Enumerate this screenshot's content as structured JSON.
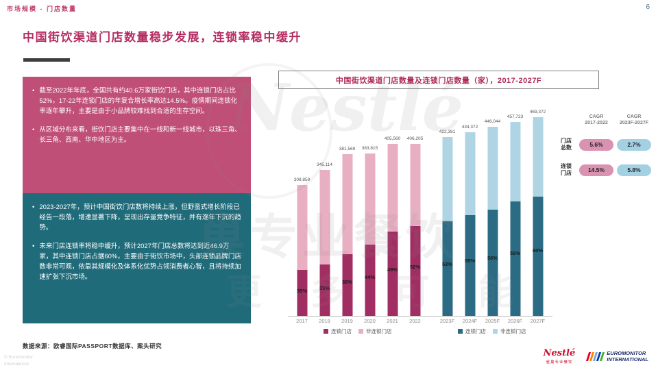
{
  "header": {
    "breadcrumb": "市场规模 - 门店数量",
    "page_number": "6"
  },
  "title": "中国街饮渠道门店数量稳步发展，连锁率稳中缓升",
  "insight_boxes": {
    "pink": {
      "bullets": [
        "截至2022年年底，全国共有约40.6万家街饮门店，其中连锁门店占比52%，17-22年连锁门店的年复合增长率高达14.5%。疫情期间连锁化率逐年攀升，主要是由于小品牌较难找到合适的生存空间。",
        "从区域分布来看，街饮门店主要集中在一线和新一线城市，以珠三角、长三角、西南、华中地区为主。"
      ]
    },
    "teal": {
      "bullets": [
        "2023-2027年，预计中国街饮门店数将持续上涨，但野蛮式增长阶段已经告一段落，增速显著下降，呈现出存量竞争特征，并有逐年下沉的趋势。",
        "未来门店连锁率将稳中缓升，预计2027年门店总数将达到近46.9万家，其中连锁门店占据60%，主要由于街饮市场中，头部连锁品牌门店数非常可观，依靠其规模化及体系化优势占领消费者心智，且将持续加速扩张下沉市场。"
      ]
    }
  },
  "chart_data": {
    "type": "bar",
    "stacked": true,
    "title": "中国街饮渠道门店数量及连锁门店数量（家），2017-2027F",
    "categories": [
      "2017",
      "2018",
      "2019",
      "2020",
      "2021",
      "2022",
      "2023F",
      "2024F",
      "2025F",
      "2026F",
      "2027F"
    ],
    "totals": [
      308859,
      345114,
      381569,
      383815,
      405560,
      406205,
      422381,
      434372,
      446044,
      457723,
      469372
    ],
    "total_labels": [
      "308,859",
      "345,114",
      "381,569",
      "383,815",
      "405,560",
      "406,205",
      "422,381",
      "434,372",
      "446,044",
      "457,723",
      "469,372"
    ],
    "chain_share_pct": [
      35,
      35,
      38,
      44,
      49,
      52,
      53,
      55,
      56,
      59,
      60
    ],
    "chain_pct_labels": [
      "35%",
      "35%",
      "38%",
      "44%",
      "49%",
      "52%",
      "53%",
      "55%",
      "56%",
      "59%",
      "60%"
    ],
    "series": [
      {
        "name": "连锁门店"
      },
      {
        "name": "非连锁门店"
      }
    ],
    "ylim": [
      0,
      500000
    ],
    "colors": {
      "actual": {
        "chain": "#A12E62",
        "nonchain": "#E8AFC3"
      },
      "forecast": {
        "chain": "#2B6B84",
        "nonchain": "#AFD4E4"
      }
    },
    "legend_groups": [
      {
        "items": [
          {
            "label": "连锁门店",
            "color": "#A12E62"
          },
          {
            "label": "非连锁门店",
            "color": "#E8AFC3"
          }
        ]
      },
      {
        "items": [
          {
            "label": "连锁门店",
            "color": "#2B6B84"
          },
          {
            "label": "非连锁门店",
            "color": "#AFD4E4"
          }
        ]
      }
    ]
  },
  "cagr_panel": {
    "col_headers": [
      {
        "line1": "CAGR",
        "line2": "2017-2022"
      },
      {
        "line1": "CAGR",
        "line2": "2023F-2027F"
      }
    ],
    "rows": [
      {
        "label_line1": "门店",
        "label_line2": "总数",
        "values": [
          "5.6%",
          "2.7%"
        ]
      },
      {
        "label_line1": "连锁",
        "label_line2": "门店",
        "values": [
          "14.5%",
          "5.8%"
        ]
      }
    ]
  },
  "footer": {
    "source": "数据来源：欧睿国际PASSPORT数据库、案头研究",
    "copyright_line1": "© Euromonitor",
    "copyright_line2": "International",
    "nestle_logo": "Nestlé",
    "nestle_sub": "雀巢专业餐饮",
    "euromonitor_line1": "EUROMONITOR",
    "euromonitor_line2": "INTERNATIONAL"
  },
  "watermark": {
    "brand": "Nestlé",
    "line1": "巢专业餐饮",
    "line2": "更 多 可 能"
  }
}
